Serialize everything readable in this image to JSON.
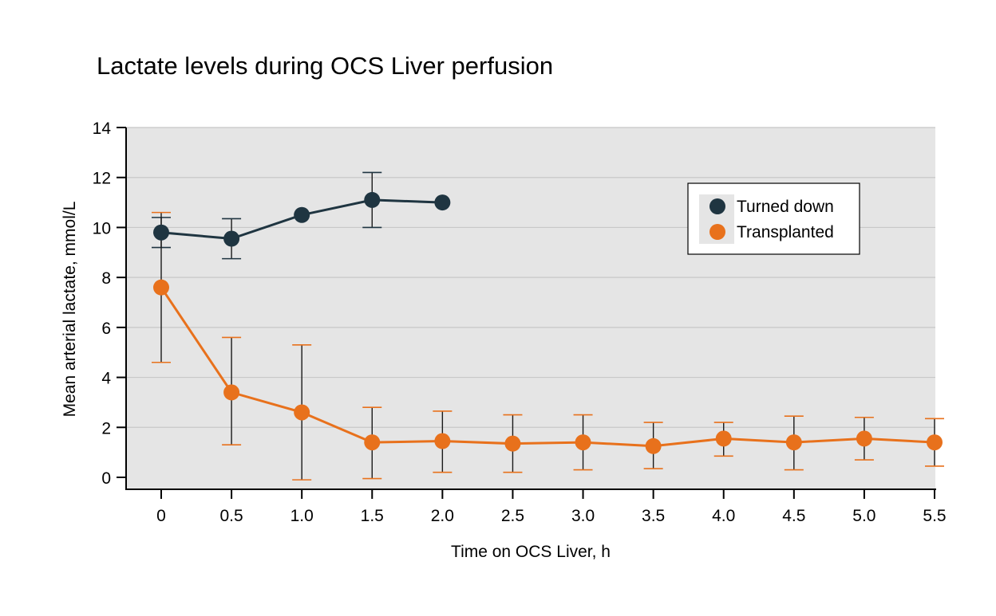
{
  "chart_data": {
    "type": "line",
    "title": "Lactate levels during OCS Liver perfusion",
    "xlabel": "Time on OCS Liver, h",
    "ylabel": "Mean arterial lactate, mmol/L",
    "x_ticks": [
      "0",
      "0.5",
      "1.0",
      "1.5",
      "2.0",
      "2.5",
      "3.0",
      "3.5",
      "4.0",
      "4.5",
      "5.0",
      "5.5"
    ],
    "y_ticks": [
      "0",
      "2",
      "4",
      "6",
      "8",
      "10",
      "12",
      "14"
    ],
    "xlim": [
      0,
      5.5
    ],
    "ylim": [
      0,
      14
    ],
    "grid": true,
    "legend_position": "top-right",
    "series": [
      {
        "name": "Turned down",
        "color": "#1f3541",
        "x": [
          0,
          0.5,
          1.0,
          1.5,
          2.0
        ],
        "y": [
          9.8,
          9.55,
          10.5,
          11.1,
          11.0
        ],
        "err_low": [
          9.2,
          8.75,
          null,
          10.0,
          null
        ],
        "err_high": [
          10.4,
          10.35,
          null,
          12.2,
          null
        ]
      },
      {
        "name": "Transplanted",
        "color": "#e8711c",
        "x": [
          0,
          0.5,
          1.0,
          1.5,
          2.0,
          2.5,
          3.0,
          3.5,
          4.0,
          4.5,
          5.0,
          5.5
        ],
        "y": [
          7.6,
          3.4,
          2.6,
          1.4,
          1.45,
          1.35,
          1.4,
          1.25,
          1.55,
          1.4,
          1.55,
          1.4
        ],
        "err_low": [
          4.6,
          1.3,
          -0.1,
          -0.05,
          0.2,
          0.2,
          0.3,
          0.35,
          0.85,
          0.3,
          0.7,
          0.45
        ],
        "err_high": [
          10.6,
          5.6,
          5.3,
          2.8,
          2.65,
          2.5,
          2.5,
          2.2,
          2.2,
          2.45,
          2.4,
          2.35
        ]
      }
    ],
    "colors": {
      "plot_background": "#e5e5e5",
      "gridline": "#c8c8c8",
      "axis": "#000000",
      "errorbar_transplanted": "#e8711c",
      "errorbar_transplanted_whisker": "#1a1a1a"
    }
  }
}
